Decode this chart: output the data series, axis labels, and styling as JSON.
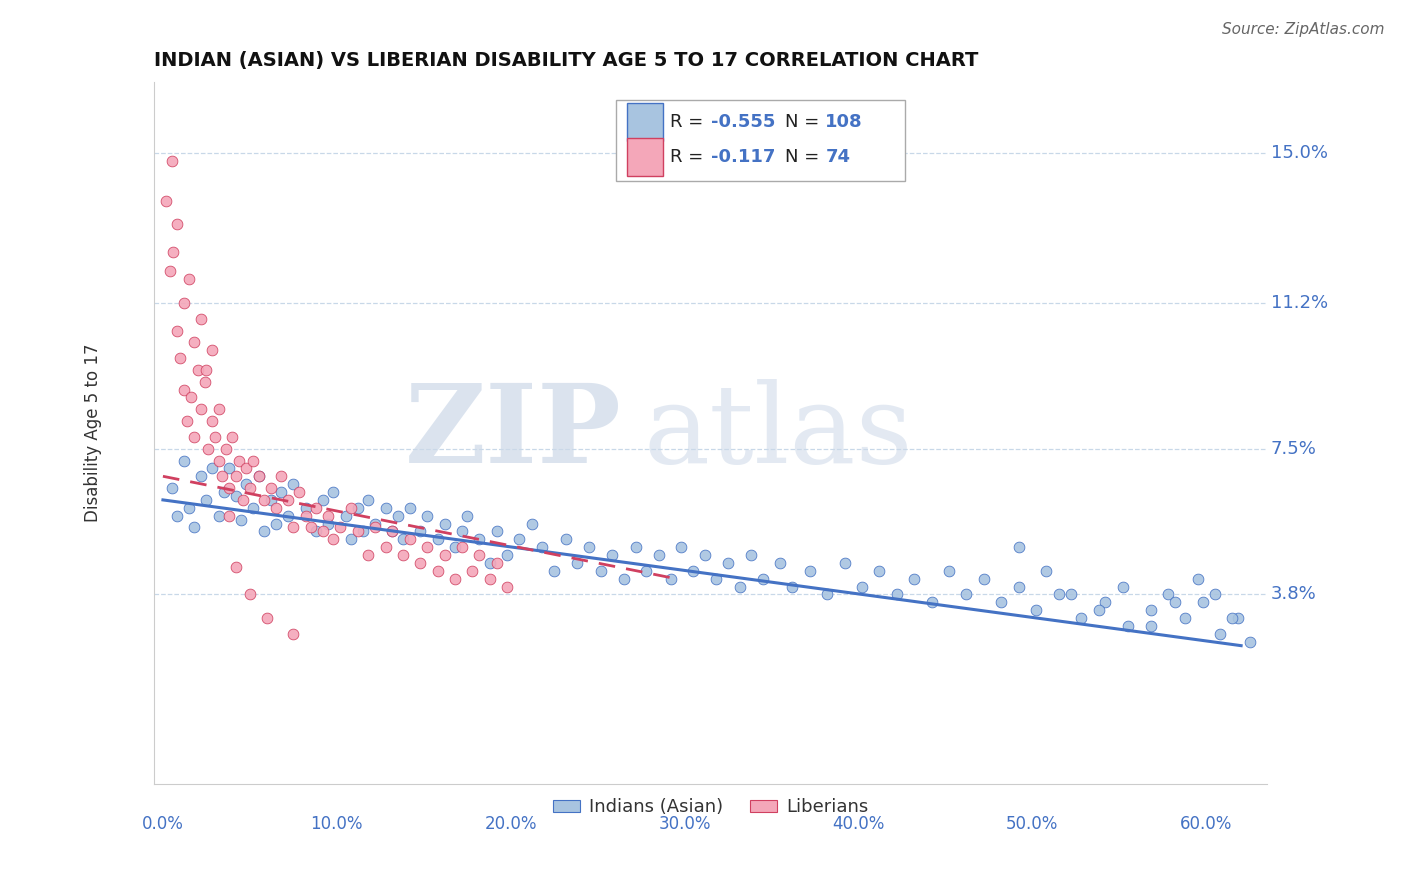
{
  "title": "INDIAN (ASIAN) VS LIBERIAN DISABILITY AGE 5 TO 17 CORRELATION CHART",
  "source": "Source: ZipAtlas.com",
  "xlabel_ticks": [
    "0.0%",
    "10.0%",
    "20.0%",
    "30.0%",
    "40.0%",
    "50.0%",
    "60.0%"
  ],
  "xlabel_vals": [
    0.0,
    0.1,
    0.2,
    0.3,
    0.4,
    0.5,
    0.6
  ],
  "ylabel_ticks": [
    "15.0%",
    "11.2%",
    "7.5%",
    "3.8%"
  ],
  "ylabel_vals": [
    0.15,
    0.112,
    0.075,
    0.038
  ],
  "xlim": [
    -0.005,
    0.635
  ],
  "ylim": [
    -0.01,
    0.168
  ],
  "color_indian": "#a8c4e0",
  "color_liberian": "#f4a7b9",
  "color_indian_line": "#4472c4",
  "color_liberian_line": "#d04060",
  "color_blue_text": "#4472c4",
  "indian_trend_x0": 0.0,
  "indian_trend_y0": 0.062,
  "indian_trend_x1": 0.62,
  "indian_trend_y1": 0.025,
  "liberian_trend_x0": 0.0,
  "liberian_trend_y0": 0.068,
  "liberian_trend_x1": 0.295,
  "liberian_trend_y1": 0.042,
  "indian_x": [
    0.005,
    0.008,
    0.012,
    0.015,
    0.018,
    0.022,
    0.025,
    0.028,
    0.032,
    0.035,
    0.038,
    0.042,
    0.045,
    0.048,
    0.052,
    0.055,
    0.058,
    0.062,
    0.065,
    0.068,
    0.072,
    0.075,
    0.082,
    0.088,
    0.092,
    0.095,
    0.098,
    0.105,
    0.108,
    0.112,
    0.115,
    0.118,
    0.122,
    0.128,
    0.132,
    0.135,
    0.138,
    0.142,
    0.148,
    0.152,
    0.158,
    0.162,
    0.168,
    0.172,
    0.175,
    0.182,
    0.188,
    0.192,
    0.198,
    0.205,
    0.212,
    0.218,
    0.225,
    0.232,
    0.238,
    0.245,
    0.252,
    0.258,
    0.265,
    0.272,
    0.278,
    0.285,
    0.292,
    0.298,
    0.305,
    0.312,
    0.318,
    0.325,
    0.332,
    0.338,
    0.345,
    0.355,
    0.362,
    0.372,
    0.382,
    0.392,
    0.402,
    0.412,
    0.422,
    0.432,
    0.442,
    0.452,
    0.462,
    0.472,
    0.482,
    0.492,
    0.502,
    0.515,
    0.528,
    0.542,
    0.555,
    0.568,
    0.578,
    0.588,
    0.598,
    0.608,
    0.618,
    0.625,
    0.615,
    0.605,
    0.595,
    0.582,
    0.568,
    0.552,
    0.538,
    0.522,
    0.508,
    0.492
  ],
  "indian_y": [
    0.065,
    0.058,
    0.072,
    0.06,
    0.055,
    0.068,
    0.062,
    0.07,
    0.058,
    0.064,
    0.07,
    0.063,
    0.057,
    0.066,
    0.06,
    0.068,
    0.054,
    0.062,
    0.056,
    0.064,
    0.058,
    0.066,
    0.06,
    0.054,
    0.062,
    0.056,
    0.064,
    0.058,
    0.052,
    0.06,
    0.054,
    0.062,
    0.056,
    0.06,
    0.054,
    0.058,
    0.052,
    0.06,
    0.054,
    0.058,
    0.052,
    0.056,
    0.05,
    0.054,
    0.058,
    0.052,
    0.046,
    0.054,
    0.048,
    0.052,
    0.056,
    0.05,
    0.044,
    0.052,
    0.046,
    0.05,
    0.044,
    0.048,
    0.042,
    0.05,
    0.044,
    0.048,
    0.042,
    0.05,
    0.044,
    0.048,
    0.042,
    0.046,
    0.04,
    0.048,
    0.042,
    0.046,
    0.04,
    0.044,
    0.038,
    0.046,
    0.04,
    0.044,
    0.038,
    0.042,
    0.036,
    0.044,
    0.038,
    0.042,
    0.036,
    0.04,
    0.034,
    0.038,
    0.032,
    0.036,
    0.03,
    0.034,
    0.038,
    0.032,
    0.036,
    0.028,
    0.032,
    0.026,
    0.032,
    0.038,
    0.042,
    0.036,
    0.03,
    0.04,
    0.034,
    0.038,
    0.044,
    0.05
  ],
  "liberian_x": [
    0.002,
    0.004,
    0.006,
    0.008,
    0.01,
    0.012,
    0.014,
    0.016,
    0.018,
    0.02,
    0.022,
    0.024,
    0.026,
    0.028,
    0.03,
    0.032,
    0.034,
    0.036,
    0.038,
    0.04,
    0.042,
    0.044,
    0.046,
    0.048,
    0.05,
    0.052,
    0.055,
    0.058,
    0.062,
    0.065,
    0.068,
    0.072,
    0.075,
    0.078,
    0.082,
    0.085,
    0.088,
    0.092,
    0.095,
    0.098,
    0.102,
    0.108,
    0.112,
    0.118,
    0.122,
    0.128,
    0.132,
    0.138,
    0.142,
    0.148,
    0.152,
    0.158,
    0.162,
    0.168,
    0.172,
    0.178,
    0.182,
    0.188,
    0.192,
    0.198,
    0.005,
    0.008,
    0.012,
    0.015,
    0.018,
    0.022,
    0.025,
    0.028,
    0.032,
    0.038,
    0.042,
    0.05,
    0.06,
    0.075
  ],
  "liberian_y": [
    0.138,
    0.12,
    0.125,
    0.105,
    0.098,
    0.09,
    0.082,
    0.088,
    0.078,
    0.095,
    0.085,
    0.092,
    0.075,
    0.082,
    0.078,
    0.072,
    0.068,
    0.075,
    0.065,
    0.078,
    0.068,
    0.072,
    0.062,
    0.07,
    0.065,
    0.072,
    0.068,
    0.062,
    0.065,
    0.06,
    0.068,
    0.062,
    0.055,
    0.064,
    0.058,
    0.055,
    0.06,
    0.054,
    0.058,
    0.052,
    0.055,
    0.06,
    0.054,
    0.048,
    0.055,
    0.05,
    0.054,
    0.048,
    0.052,
    0.046,
    0.05,
    0.044,
    0.048,
    0.042,
    0.05,
    0.044,
    0.048,
    0.042,
    0.046,
    0.04,
    0.148,
    0.132,
    0.112,
    0.118,
    0.102,
    0.108,
    0.095,
    0.1,
    0.085,
    0.058,
    0.045,
    0.038,
    0.032,
    0.028
  ]
}
